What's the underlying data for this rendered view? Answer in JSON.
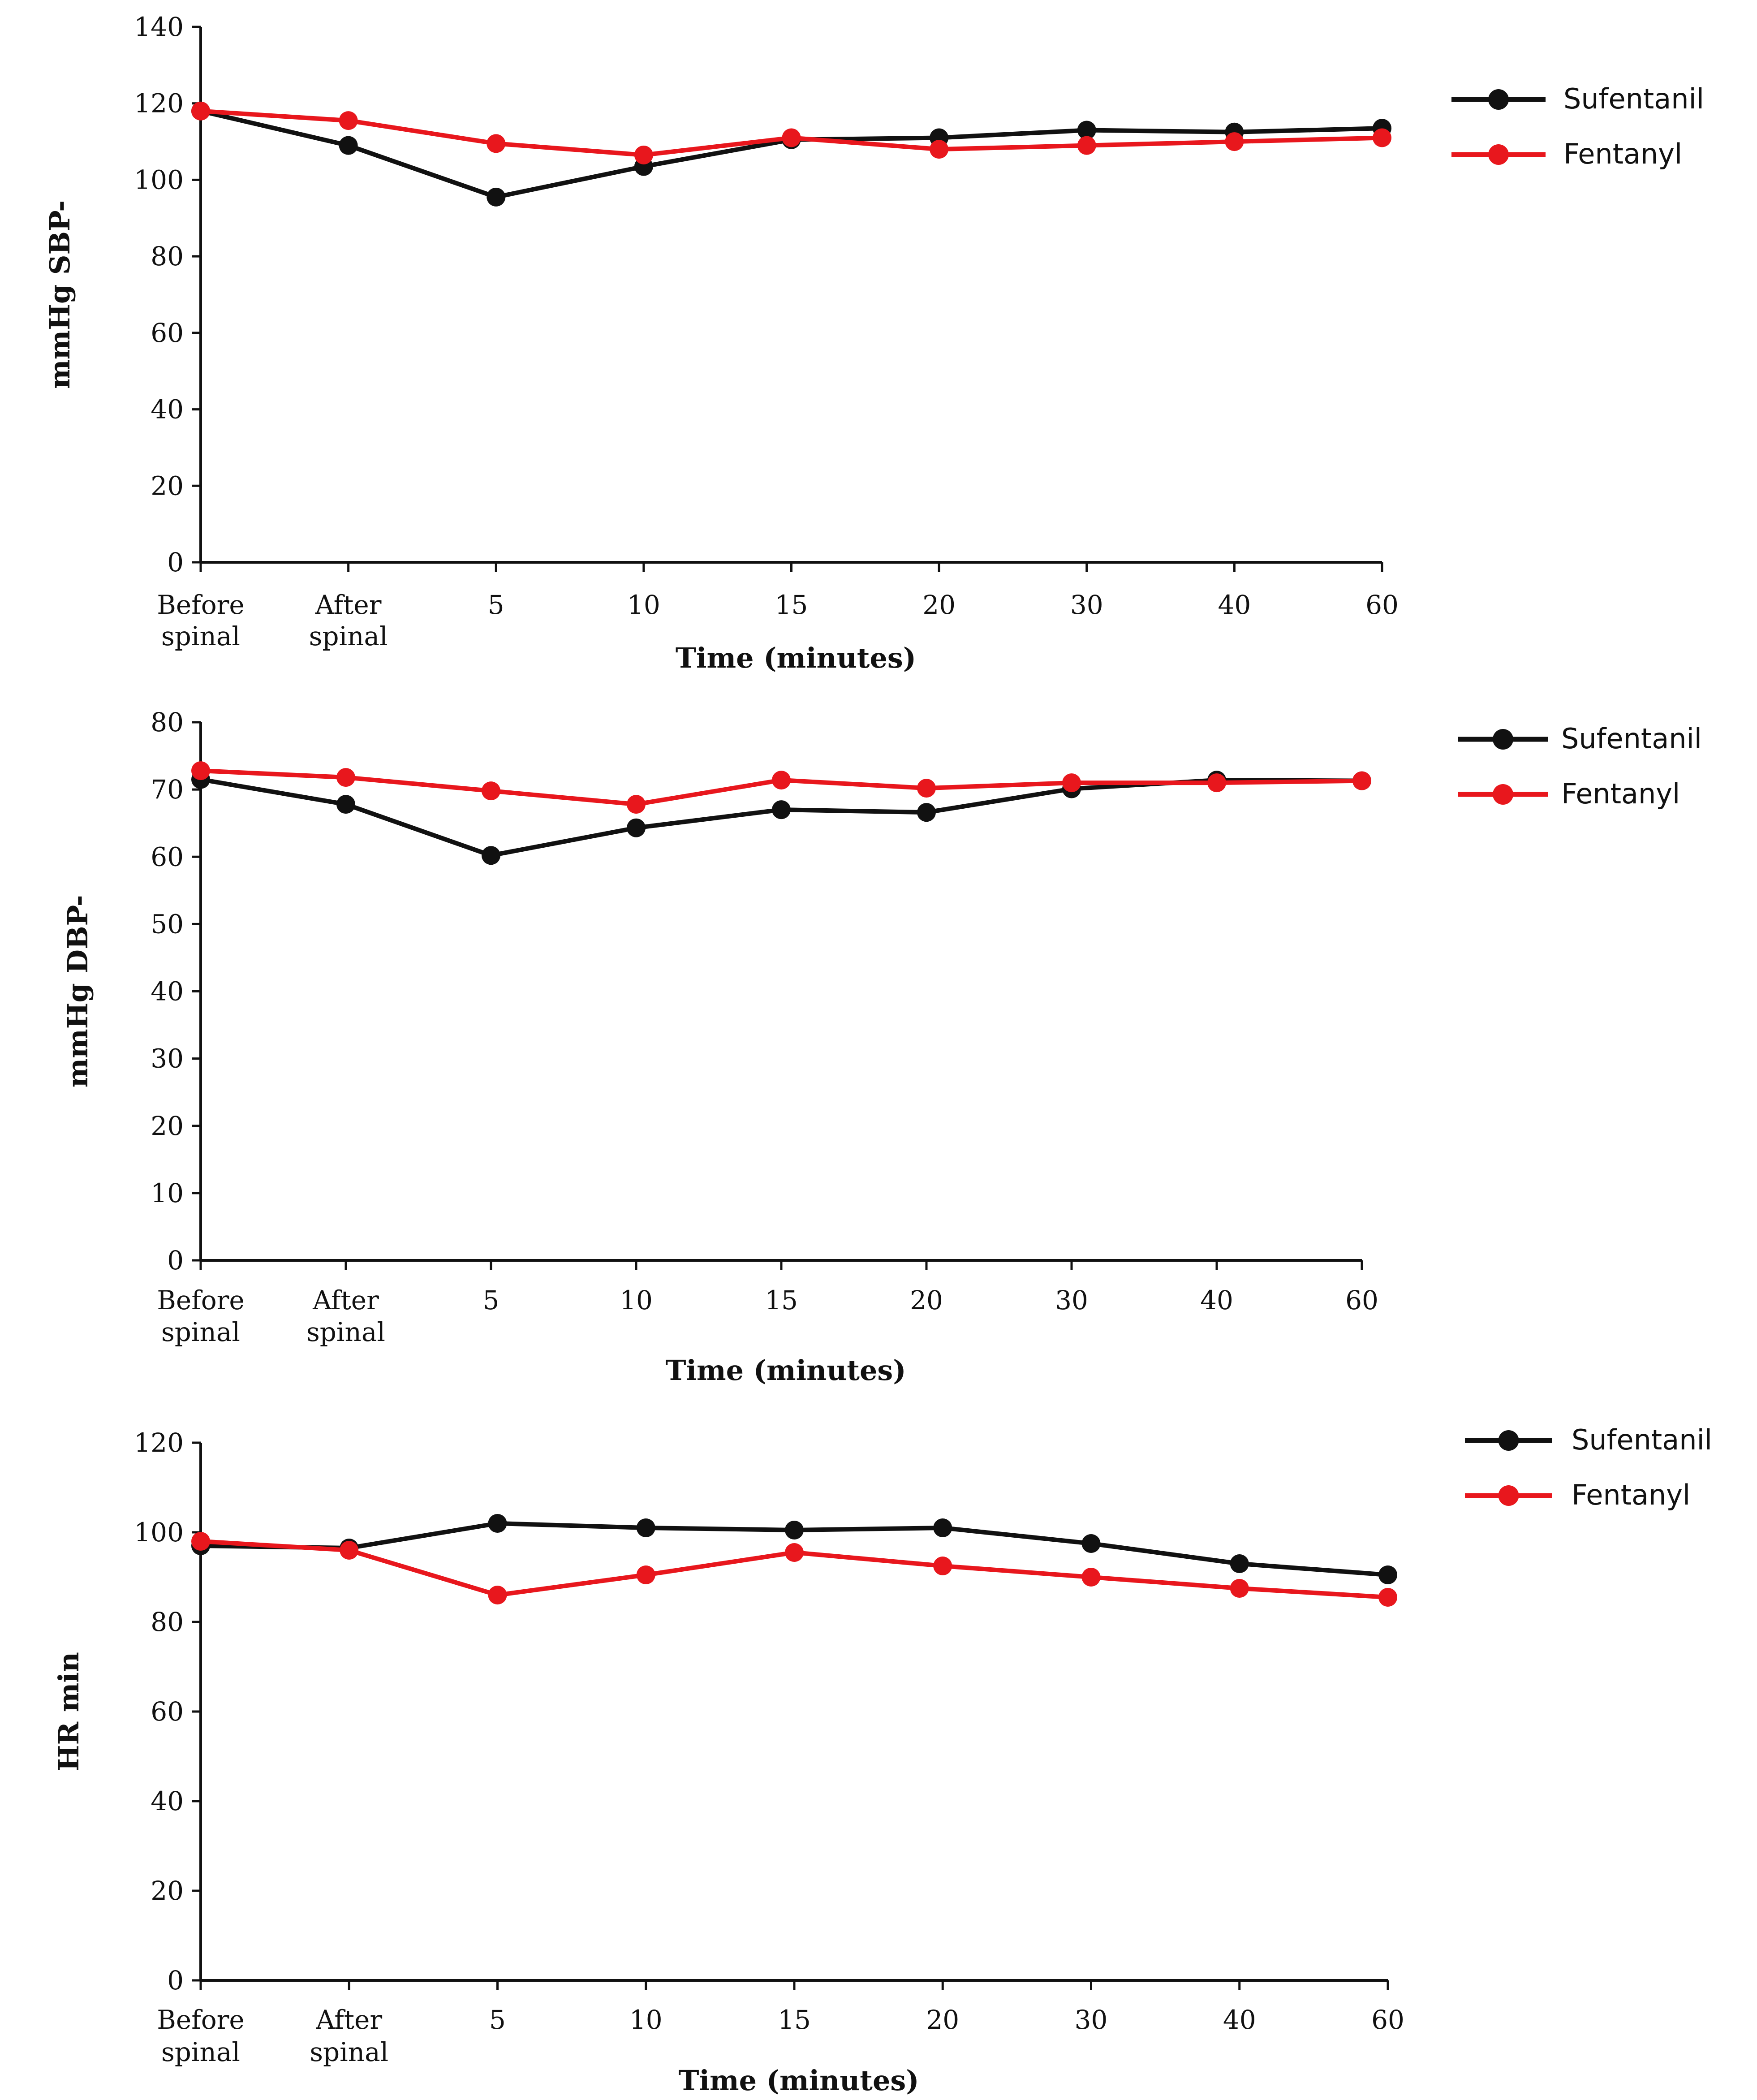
{
  "colors": {
    "axis": "#111111",
    "sufentanil": "#111111",
    "fentanyl": "#e8171d"
  },
  "chart_data": [
    {
      "type": "line",
      "id": "sbp",
      "ylabel": "mmHg SBP-",
      "xlabel": "Time (minutes)",
      "categories": [
        [
          "Before",
          "spinal"
        ],
        [
          "After",
          "spinal"
        ],
        [
          "5"
        ],
        [
          "10"
        ],
        [
          "15"
        ],
        [
          "20"
        ],
        [
          "30"
        ],
        [
          "40"
        ],
        [
          "60"
        ]
      ],
      "yticks": [
        0,
        20,
        40,
        60,
        80,
        100,
        120,
        140
      ],
      "ylim": [
        0,
        140
      ],
      "legend_position": "top-right",
      "series": [
        {
          "name": "Sufentanil",
          "color_key": "sufentanil",
          "values": [
            118,
            109,
            95.5,
            103.5,
            110.5,
            111,
            113,
            112.5,
            113.5
          ]
        },
        {
          "name": "Fentanyl",
          "color_key": "fentanyl",
          "values": [
            118,
            115.5,
            109.5,
            106.5,
            111,
            108,
            109,
            110,
            111
          ]
        }
      ]
    },
    {
      "type": "line",
      "id": "dbp",
      "ylabel": "mmHg DBP-",
      "xlabel": "Time (minutes)",
      "categories": [
        [
          "Before",
          "spinal"
        ],
        [
          "After",
          "spinal"
        ],
        [
          "5"
        ],
        [
          "10"
        ],
        [
          "15"
        ],
        [
          "20"
        ],
        [
          "30"
        ],
        [
          "40"
        ],
        [
          "60"
        ]
      ],
      "yticks": [
        0,
        10,
        20,
        30,
        40,
        50,
        60,
        70,
        80
      ],
      "ylim": [
        0,
        80
      ],
      "legend_position": "top-right",
      "series": [
        {
          "name": "Sufentanil",
          "color_key": "sufentanil",
          "values": [
            71.5,
            67.8,
            60.2,
            64.3,
            67,
            66.6,
            70.1,
            71.4,
            71.3
          ]
        },
        {
          "name": "Fentanyl",
          "color_key": "fentanyl",
          "values": [
            72.8,
            71.8,
            69.8,
            67.8,
            71.4,
            70.2,
            71,
            71,
            71.3
          ]
        }
      ]
    },
    {
      "type": "line",
      "id": "hr",
      "ylabel": "HR min",
      "xlabel": "Time (minutes)",
      "categories": [
        [
          "Before",
          "spinal"
        ],
        [
          "After",
          "spinal"
        ],
        [
          "5"
        ],
        [
          "10"
        ],
        [
          "15"
        ],
        [
          "20"
        ],
        [
          "30"
        ],
        [
          "40"
        ],
        [
          "60"
        ]
      ],
      "yticks": [
        0,
        20,
        40,
        60,
        80,
        100,
        120
      ],
      "ylim": [
        0,
        120
      ],
      "legend_position": "top-right",
      "series": [
        {
          "name": "Sufentanil",
          "color_key": "sufentanil",
          "values": [
            97,
            96.5,
            102,
            101,
            100.5,
            101,
            97.5,
            93,
            90.5
          ]
        },
        {
          "name": "Fentanyl",
          "color_key": "fentanyl",
          "values": [
            98,
            96,
            86,
            90.5,
            95.5,
            92.5,
            90,
            87.5,
            85.5
          ]
        }
      ]
    }
  ]
}
